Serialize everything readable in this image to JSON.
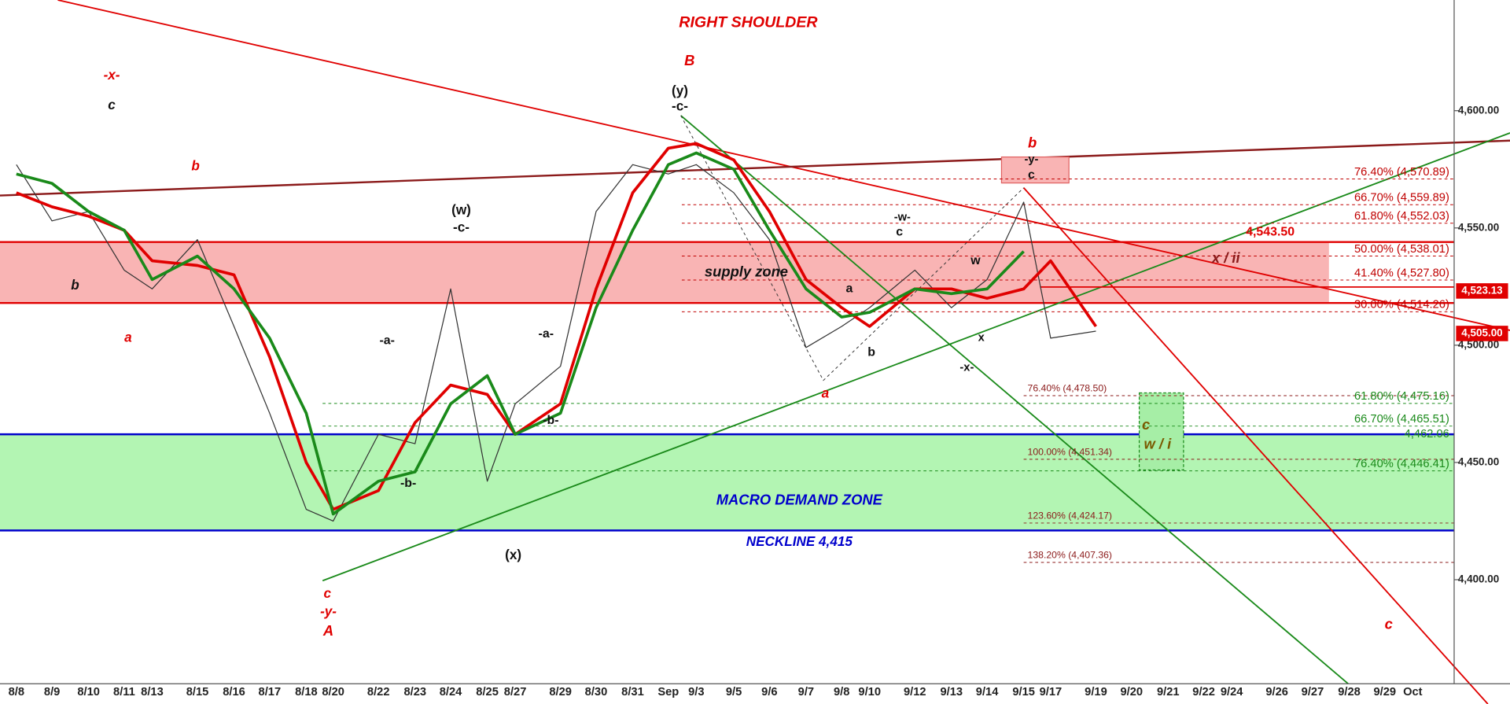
{
  "chart_data": {
    "type": "line",
    "categories": [
      "8/8",
      "8/9",
      "8/10",
      "8/11",
      "8/13",
      "8/15",
      "8/16",
      "8/17",
      "8/18",
      "8/20",
      "8/22",
      "8/23",
      "8/24",
      "8/25",
      "8/27",
      "8/29",
      "8/30",
      "8/31",
      "Sep",
      "9/3",
      "9/5",
      "9/6",
      "9/7",
      "9/8",
      "9/10",
      "9/12",
      "9/13",
      "9/14",
      "9/15",
      "9/17",
      "9/19",
      "9/20",
      "9/21",
      "9/22",
      "9/24",
      "9/26",
      "9/27",
      "9/28",
      "9/29",
      "Oct"
    ],
    "series": [
      {
        "color": "#333333",
        "values": [
          4577,
          4553,
          4557,
          4532,
          4524,
          4545,
          4508,
          4471,
          4430,
          4425,
          4462,
          4458,
          4524,
          4442,
          4475,
          4491,
          4557,
          4577,
          4573,
          4577,
          4565,
          4545,
          4499,
          4508,
          4516,
          4532,
          4516,
          4528,
          4561,
          4503,
          4506,
          null,
          null,
          null,
          null,
          null,
          null,
          null,
          null,
          null
        ]
      },
      {
        "color": "#e00000",
        "values": [
          4565,
          4559,
          4555,
          4549,
          4536,
          4534,
          4530,
          4495,
          4450,
          4430,
          4438,
          4467,
          4483,
          4479,
          4462,
          4475,
          4524,
          4565,
          4584,
          4586,
          4579,
          4557,
          4528,
          4516,
          4508,
          4524,
          4524,
          4520,
          4524,
          4536,
          4508,
          null,
          null,
          null,
          null,
          null,
          null,
          null,
          null,
          null
        ]
      },
      {
        "color": "#1a8a1a",
        "values": [
          4573,
          4569,
          4557,
          4549,
          4528,
          4538,
          4524,
          4503,
          4471,
          4428,
          4442,
          4446,
          4475,
          4487,
          4462,
          4471,
          4516,
          4549,
          4577,
          4582,
          4575,
          4549,
          4524,
          4512,
          4514,
          4524,
          4522,
          4524,
          4540,
          null,
          null,
          null,
          null,
          null,
          null,
          null,
          null,
          null,
          null,
          null
        ]
      }
    ],
    "ylim": [
      4347,
      4647.2
    ],
    "yticks": [
      {
        "value": 4400,
        "label": "4,400.00"
      },
      {
        "value": 4450,
        "label": "4,450.00"
      },
      {
        "value": 4500,
        "label": "4,500.00"
      },
      {
        "value": 4550,
        "label": "4,550.00"
      },
      {
        "value": 4600,
        "label": "4,600.00"
      }
    ],
    "zones": [
      {
        "label": "supply zone",
        "range": [
          4518,
          4544
        ],
        "color": "#f9b4b4",
        "edge": "#e00000"
      },
      {
        "label": "MACRO DEMAND ZONE",
        "range": [
          4421,
          4462
        ],
        "color": "#b3f5b3",
        "edge": "#0000cc"
      }
    ],
    "fib_groups": [
      {
        "color": "#c00000",
        "levels": [
          {
            "value": 4570.89,
            "label": "76.40% (4,570.89)"
          },
          {
            "value": 4559.89,
            "label": "66.70% (4,559.89)"
          },
          {
            "value": 4552.03,
            "label": "61.80% (4,552.03)"
          },
          {
            "value": 4538.01,
            "label": "50.00% (4,538.01)"
          },
          {
            "value": 4527.8,
            "label": "41.40% (4,527.80)"
          },
          {
            "value": 4514.26,
            "label": "30.00% (4,514.26)"
          }
        ]
      },
      {
        "color": "#8b1a1a",
        "levels": [
          {
            "value": 4478.5,
            "label": "76.40% (4,478.50)"
          },
          {
            "value": 4451.34,
            "label": "100.00% (4,451.34)"
          },
          {
            "value": 4424.17,
            "label": "123.60% (4,424.17)"
          },
          {
            "value": 4407.36,
            "label": "138.20% (4,407.36)"
          }
        ]
      },
      {
        "color": "#1a8a1a",
        "levels": [
          {
            "value": 4475.16,
            "label": "61.80% (4,475.16)"
          },
          {
            "value": 4465.51,
            "label": "66.70% (4,465.51)"
          },
          {
            "value": 4446.41,
            "label": "76.40% (4,446.41)"
          }
        ]
      }
    ],
    "price_labels": [
      {
        "value": 4523.13,
        "label": "4,523.13",
        "color": "#e00000"
      },
      {
        "value": 4505,
        "label": "4,505.00",
        "color": "#e00000"
      },
      {
        "value": 4462.06,
        "label": "4,462.06",
        "color": "#1a8a1a"
      }
    ],
    "annotations": [
      "RIGHT SHOULDER",
      "B",
      "-x-",
      "c",
      "b",
      "b",
      "a",
      "(w)",
      "-c-",
      "-a-",
      "-b-",
      "-a-",
      "-b-",
      "(x)",
      "c",
      "-y-",
      "A",
      "(y)",
      "-c-",
      "a",
      "b",
      "a",
      "-w-",
      "c",
      "w",
      "x",
      "-x-",
      "b",
      "-y-",
      "c",
      "x / ii",
      "c",
      "w / i",
      "NECKLINE 4,415",
      "c",
      "4,543.50"
    ]
  }
}
